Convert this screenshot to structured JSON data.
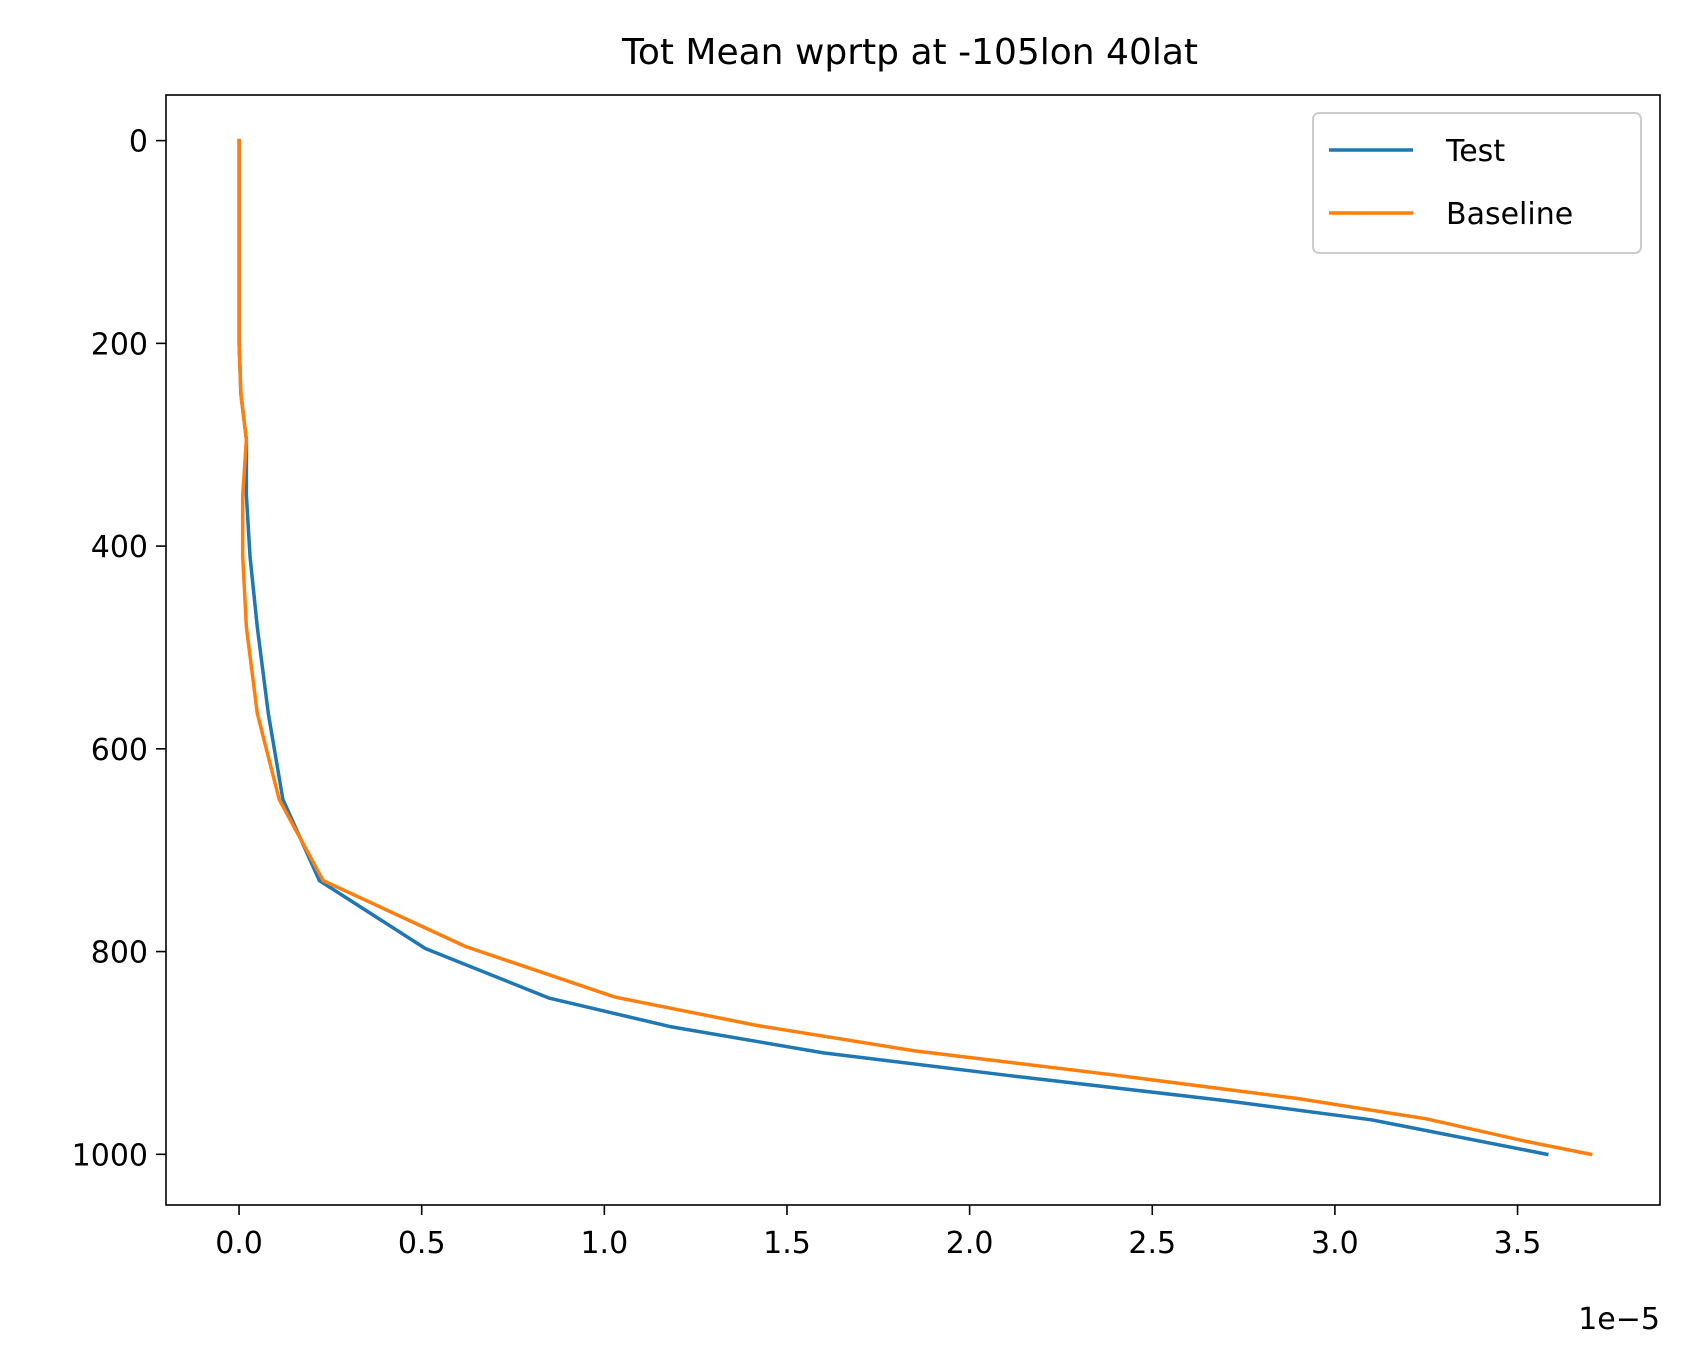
{
  "chart_data": {
    "type": "line",
    "title": "Tot Mean wprtp at -105lon 40lat",
    "xlabel": "",
    "ylabel": "",
    "x_offset_label": "1e−5",
    "xlim": [
      -2e-06,
      3.89e-05
    ],
    "ylim": [
      1050,
      -45
    ],
    "y_inverted": true,
    "grid": false,
    "legend_position": "top-right",
    "xticks": [
      0,
      5e-06,
      1e-05,
      1.5e-05,
      2e-05,
      2.5e-05,
      3e-05,
      3.5e-05
    ],
    "xtick_labels": [
      "0.0",
      "0.5",
      "1.0",
      "1.5",
      "2.0",
      "2.5",
      "3.0",
      "3.5"
    ],
    "yticks": [
      0,
      200,
      400,
      600,
      800,
      1000
    ],
    "ytick_labels": [
      "0",
      "200",
      "400",
      "600",
      "800",
      "1000"
    ],
    "series": [
      {
        "name": "Test",
        "color": "#1f77b4",
        "points": [
          {
            "x": 0.0,
            "y": 0
          },
          {
            "x": 0.0,
            "y": 100
          },
          {
            "x": 0.0,
            "y": 200
          },
          {
            "x": 5e-08,
            "y": 250
          },
          {
            "x": 2e-07,
            "y": 295
          },
          {
            "x": 2e-07,
            "y": 350
          },
          {
            "x": 3e-07,
            "y": 410
          },
          {
            "x": 5e-07,
            "y": 480
          },
          {
            "x": 8e-07,
            "y": 565
          },
          {
            "x": 1.2e-06,
            "y": 650
          },
          {
            "x": 2.2e-06,
            "y": 730
          },
          {
            "x": 5.1e-06,
            "y": 797
          },
          {
            "x": 8.5e-06,
            "y": 846
          },
          {
            "x": 1.18e-05,
            "y": 874
          },
          {
            "x": 1.6e-05,
            "y": 900
          },
          {
            "x": 2.1e-05,
            "y": 922
          },
          {
            "x": 2.7e-05,
            "y": 947
          },
          {
            "x": 3.1e-05,
            "y": 966
          },
          {
            "x": 3.58e-05,
            "y": 1000
          }
        ]
      },
      {
        "name": "Baseline",
        "color": "#ff7f0e",
        "points": [
          {
            "x": 0.0,
            "y": 0
          },
          {
            "x": 0.0,
            "y": 100
          },
          {
            "x": 0.0,
            "y": 200
          },
          {
            "x": 5e-08,
            "y": 250
          },
          {
            "x": 2e-07,
            "y": 295
          },
          {
            "x": 1e-07,
            "y": 350
          },
          {
            "x": 1e-07,
            "y": 410
          },
          {
            "x": 2e-07,
            "y": 480
          },
          {
            "x": 5e-07,
            "y": 565
          },
          {
            "x": 1.1e-06,
            "y": 650
          },
          {
            "x": 2.3e-06,
            "y": 730
          },
          {
            "x": 6.2e-06,
            "y": 795
          },
          {
            "x": 1.03e-05,
            "y": 845
          },
          {
            "x": 1.42e-05,
            "y": 873
          },
          {
            "x": 1.85e-05,
            "y": 898
          },
          {
            "x": 2.4e-05,
            "y": 922
          },
          {
            "x": 2.9e-05,
            "y": 945
          },
          {
            "x": 3.25e-05,
            "y": 965
          },
          {
            "x": 3.52e-05,
            "y": 987
          },
          {
            "x": 3.7e-05,
            "y": 1000
          }
        ]
      }
    ]
  }
}
